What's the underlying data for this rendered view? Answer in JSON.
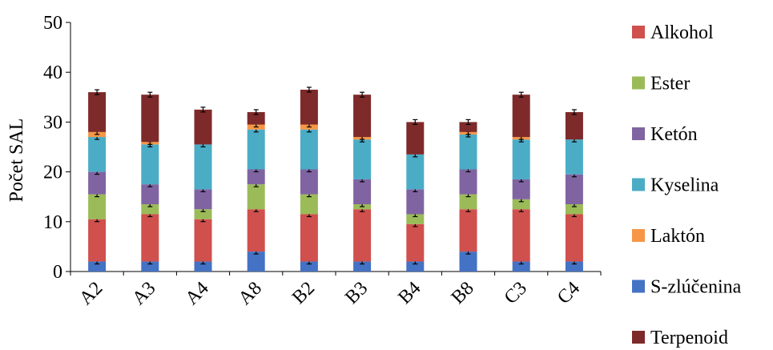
{
  "chart_data": {
    "type": "bar",
    "stacked": true,
    "ylabel": "Počet SAL",
    "ylim": [
      0,
      50
    ],
    "yticks": [
      "0",
      "10",
      "20",
      "30",
      "40",
      "50"
    ],
    "grid": false,
    "legend_position": "right",
    "categories": [
      "A2",
      "A3",
      "A4",
      "A8",
      "B2",
      "B3",
      "B4",
      "B8",
      "C3",
      "C4"
    ],
    "series": [
      {
        "name": "S-zlúčenina",
        "color": "#4472C4",
        "values": [
          2,
          2,
          2,
          4,
          2,
          2,
          2,
          4,
          2,
          2
        ]
      },
      {
        "name": "Alkohol",
        "color": "#D0504D",
        "values": [
          8.5,
          9.5,
          8.5,
          8.5,
          9.5,
          10.5,
          7.5,
          8.5,
          10.5,
          9.5
        ]
      },
      {
        "name": "Ester",
        "color": "#9BBB59",
        "values": [
          5,
          2,
          2,
          5,
          4,
          1,
          2,
          3,
          2,
          2
        ]
      },
      {
        "name": "Ketón",
        "color": "#8064A2",
        "values": [
          4.5,
          4,
          4,
          3,
          5,
          5,
          5,
          5,
          4,
          6
        ]
      },
      {
        "name": "Kyselina",
        "color": "#4BACC6",
        "values": [
          7,
          8,
          9,
          8,
          8,
          8,
          7,
          7,
          8,
          7
        ]
      },
      {
        "name": "Laktón",
        "color": "#F79646",
        "values": [
          1,
          0.5,
          0,
          1,
          1,
          0.5,
          0,
          0.5,
          0.5,
          0
        ]
      },
      {
        "name": "Terpenoid",
        "color": "#7E2A2A",
        "values": [
          8,
          9.5,
          7,
          2.5,
          7,
          8.5,
          6.5,
          2,
          8.5,
          5.5
        ]
      }
    ],
    "legend_order": [
      "Alkohol",
      "Ester",
      "Ketón",
      "Kyselina",
      "Laktón",
      "S-zlúčenina",
      "Terpenoid"
    ],
    "error_bars": true
  }
}
